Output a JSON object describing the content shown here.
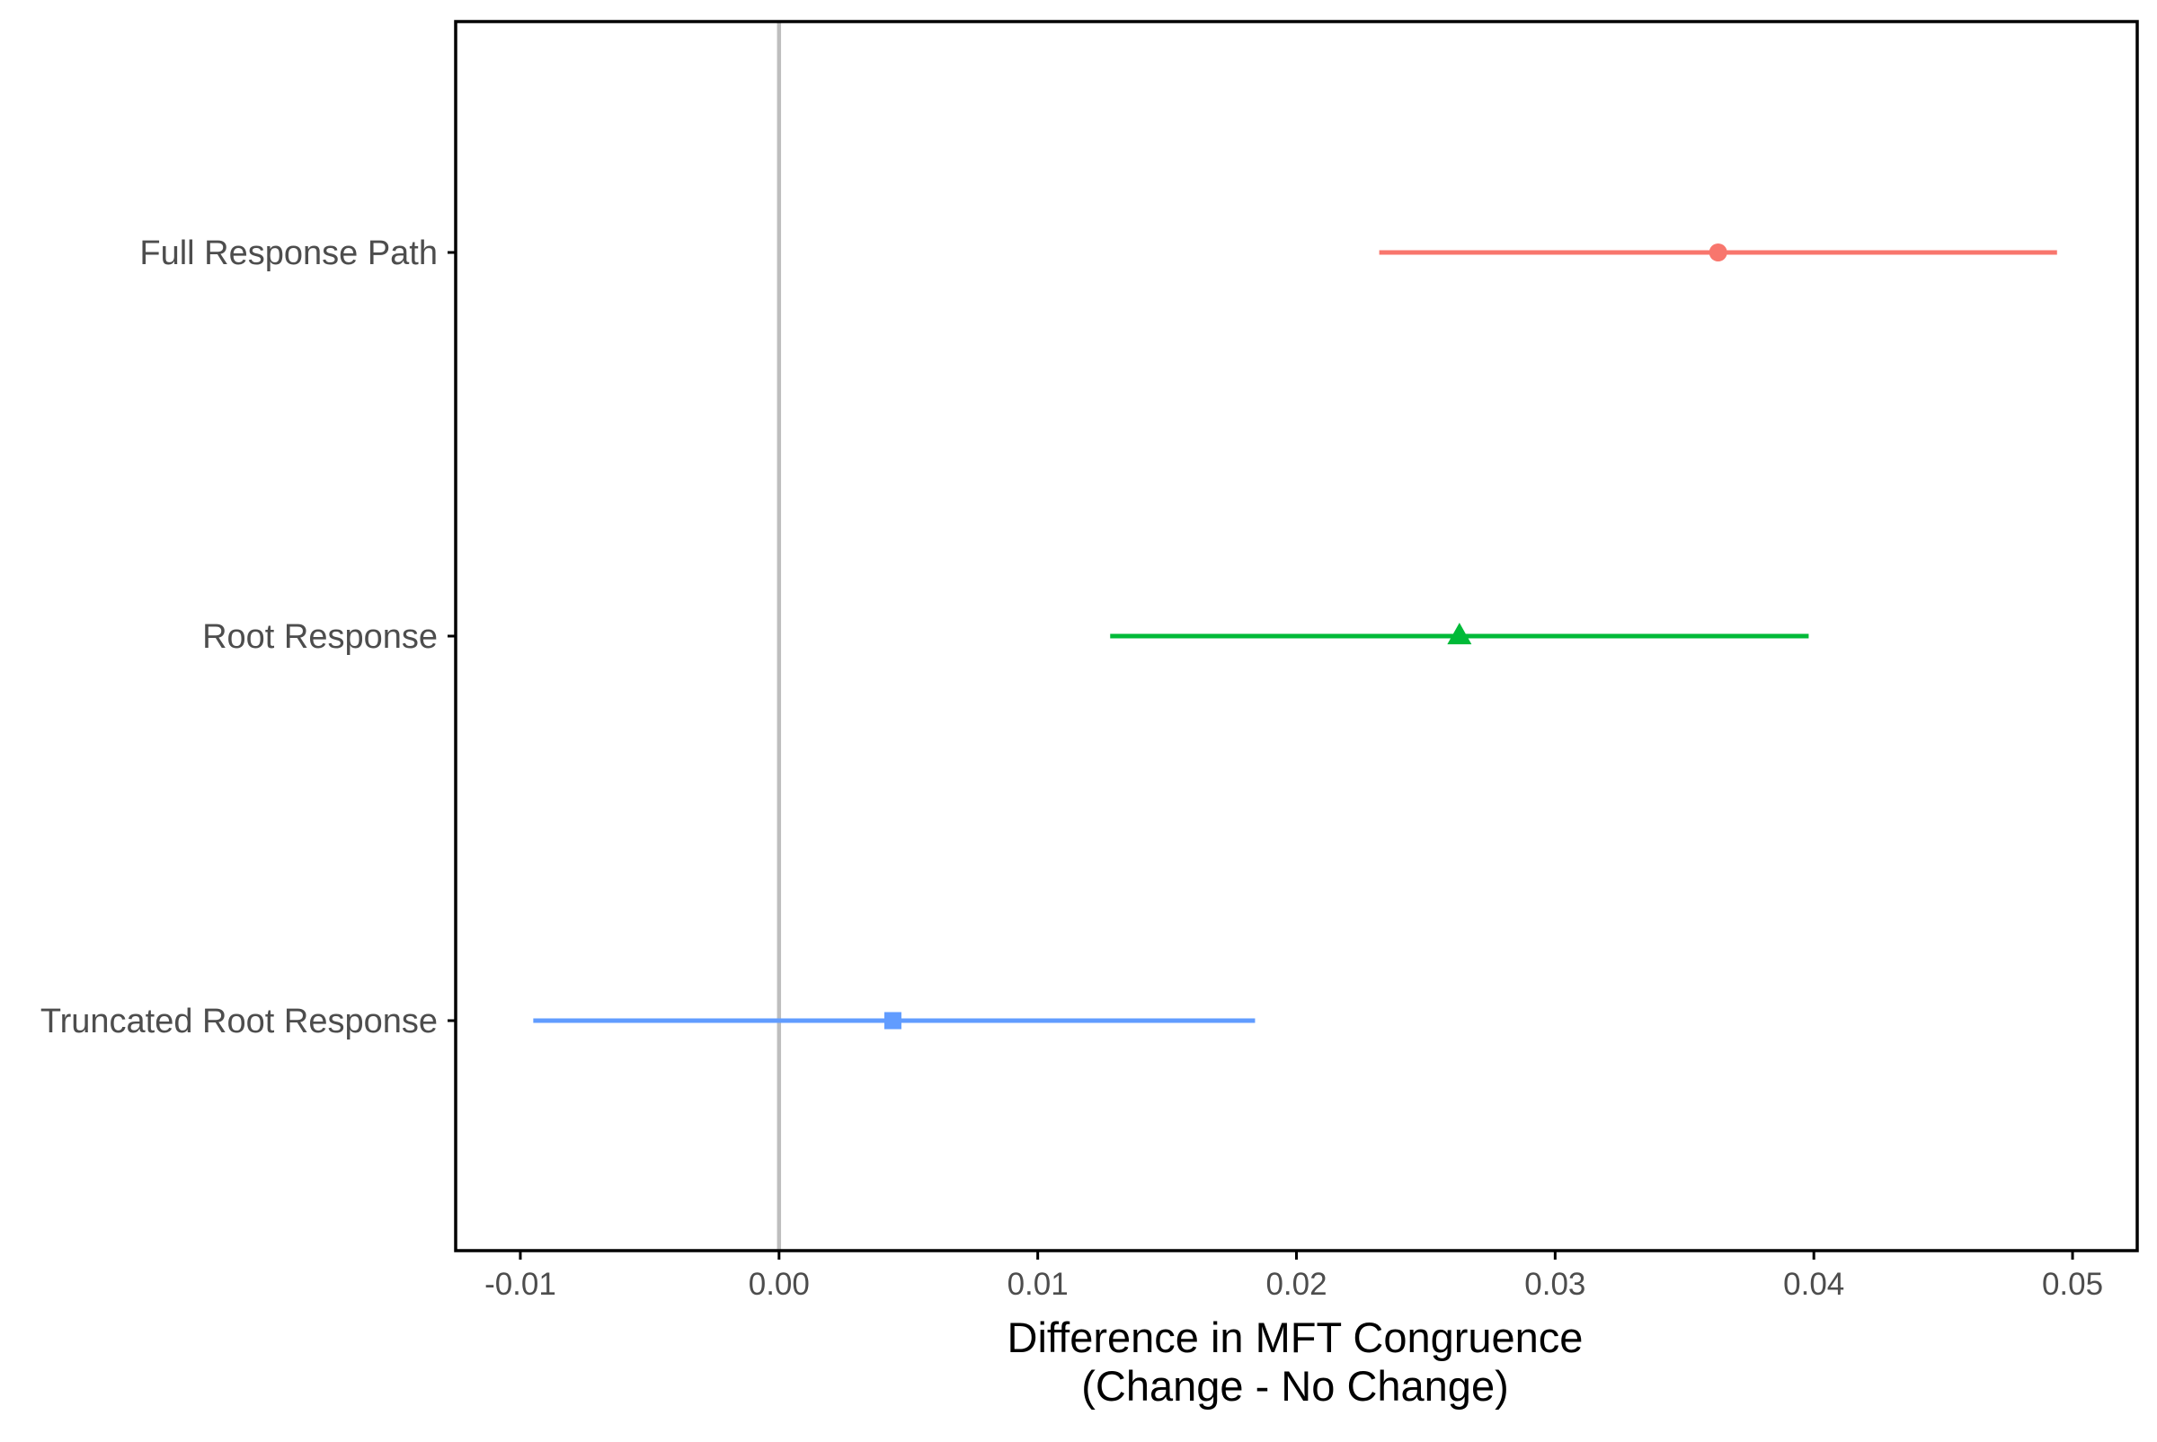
{
  "chart_data": {
    "type": "forest",
    "xlabel": "Difference in MFT Congruence",
    "xlabel_line2": "(Change - No Change)",
    "ylabel": "",
    "xlim": [
      -0.0125,
      0.0525
    ],
    "x_ticks": [
      -0.01,
      0.0,
      0.01,
      0.02,
      0.03,
      0.04,
      0.05
    ],
    "x_tick_labels": [
      "-0.01",
      "0.00",
      "0.01",
      "0.02",
      "0.03",
      "0.04",
      "0.05"
    ],
    "reference_line": 0.0,
    "grid": false,
    "legend": "none",
    "series": [
      {
        "label": "Full Response Path",
        "estimate": 0.0363,
        "ci_low": 0.0232,
        "ci_high": 0.0494,
        "shape": "circle",
        "color": "#F8766D"
      },
      {
        "label": "Root Response",
        "estimate": 0.0263,
        "ci_low": 0.0128,
        "ci_high": 0.0398,
        "shape": "triangle",
        "color": "#00BA38"
      },
      {
        "label": "Truncated Root Response",
        "estimate": 0.0044,
        "ci_low": -0.0095,
        "ci_high": 0.0184,
        "shape": "square",
        "color": "#619CFF"
      }
    ],
    "colors": {
      "axis": "#000000",
      "tick_text": "#4d4d4d",
      "reference_line": "#BEBEBE"
    }
  }
}
